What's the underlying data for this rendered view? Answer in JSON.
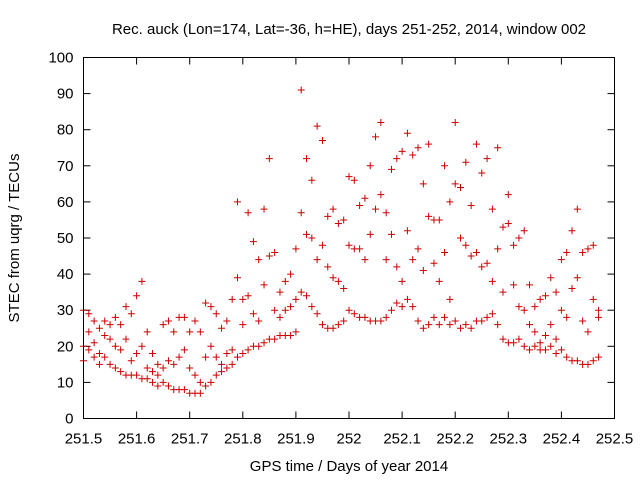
{
  "chart_data": {
    "type": "scatter",
    "title": "Rec. auck (Lon=174, Lat=-36, h=HE), days 251-252, 2014, window 002",
    "xlabel": "GPS time / Days of year 2014",
    "ylabel": "STEC from uqrg / TECUs",
    "xlim": [
      251.5,
      252.5
    ],
    "ylim": [
      0,
      100
    ],
    "xticks": [
      251.5,
      251.6,
      251.7,
      251.8,
      251.9,
      252.0,
      252.1,
      252.2,
      252.3,
      252.4,
      252.5
    ],
    "xtick_labels": [
      "251.5",
      "251.6",
      "251.7",
      "251.8",
      "251.9",
      "252",
      "252.1",
      "252.2",
      "252.3",
      "252.4",
      "252.5"
    ],
    "yticks": [
      0,
      10,
      20,
      30,
      40,
      50,
      60,
      70,
      80,
      90,
      100
    ],
    "ytick_labels": [
      "0",
      "10",
      "20",
      "30",
      "40",
      "50",
      "60",
      "70",
      "80",
      "90",
      "100"
    ],
    "grid": false,
    "marker": "+",
    "series_color": "#cc0000",
    "series": [
      {
        "name": "STEC",
        "points": [
          [
            251.5,
            30
          ],
          [
            251.5,
            20
          ],
          [
            251.5,
            16
          ],
          [
            251.51,
            29
          ],
          [
            251.51,
            24
          ],
          [
            251.51,
            19
          ],
          [
            251.52,
            27
          ],
          [
            251.52,
            21
          ],
          [
            251.52,
            17
          ],
          [
            251.53,
            25
          ],
          [
            251.53,
            18
          ],
          [
            251.53,
            15
          ],
          [
            251.54,
            27
          ],
          [
            251.54,
            23
          ],
          [
            251.54,
            17
          ],
          [
            251.55,
            26
          ],
          [
            251.55,
            22
          ],
          [
            251.55,
            15
          ],
          [
            251.56,
            28
          ],
          [
            251.56,
            20
          ],
          [
            251.56,
            14
          ],
          [
            251.57,
            26
          ],
          [
            251.57,
            19
          ],
          [
            251.57,
            13
          ],
          [
            251.58,
            31
          ],
          [
            251.58,
            22
          ],
          [
            251.58,
            12
          ],
          [
            251.59,
            29
          ],
          [
            251.59,
            16
          ],
          [
            251.59,
            12
          ],
          [
            251.6,
            34
          ],
          [
            251.6,
            18
          ],
          [
            251.6,
            12
          ],
          [
            251.61,
            38
          ],
          [
            251.61,
            20
          ],
          [
            251.61,
            11
          ],
          [
            251.62,
            24
          ],
          [
            251.62,
            14
          ],
          [
            251.62,
            11
          ],
          [
            251.63,
            18
          ],
          [
            251.63,
            13
          ],
          [
            251.63,
            10
          ],
          [
            251.64,
            15
          ],
          [
            251.64,
            12
          ],
          [
            251.64,
            9
          ],
          [
            251.65,
            26
          ],
          [
            251.65,
            14
          ],
          [
            251.65,
            10
          ],
          [
            251.66,
            27
          ],
          [
            251.66,
            16
          ],
          [
            251.66,
            9
          ],
          [
            251.67,
            24
          ],
          [
            251.67,
            15
          ],
          [
            251.67,
            8
          ],
          [
            251.68,
            28
          ],
          [
            251.68,
            17
          ],
          [
            251.68,
            8
          ],
          [
            251.69,
            28
          ],
          [
            251.69,
            19
          ],
          [
            251.69,
            8
          ],
          [
            251.7,
            24
          ],
          [
            251.7,
            14
          ],
          [
            251.7,
            7
          ],
          [
            251.71,
            27
          ],
          [
            251.71,
            12
          ],
          [
            251.71,
            7
          ],
          [
            251.72,
            24
          ],
          [
            251.72,
            10
          ],
          [
            251.72,
            7
          ],
          [
            251.73,
            32
          ],
          [
            251.73,
            17
          ],
          [
            251.73,
            9
          ],
          [
            251.74,
            31
          ],
          [
            251.74,
            20
          ],
          [
            251.74,
            10
          ],
          [
            251.75,
            29
          ],
          [
            251.75,
            17
          ],
          [
            251.75,
            12
          ],
          [
            251.76,
            25
          ],
          [
            251.76,
            15
          ],
          [
            251.76,
            13
          ],
          [
            251.77,
            27
          ],
          [
            251.77,
            18
          ],
          [
            251.77,
            14
          ],
          [
            251.78,
            33
          ],
          [
            251.78,
            19
          ],
          [
            251.78,
            15
          ],
          [
            251.79,
            60
          ],
          [
            251.79,
            39
          ],
          [
            251.79,
            17
          ],
          [
            251.8,
            33
          ],
          [
            251.8,
            26
          ],
          [
            251.8,
            18
          ],
          [
            251.81,
            57
          ],
          [
            251.81,
            34
          ],
          [
            251.81,
            19
          ],
          [
            251.82,
            49
          ],
          [
            251.82,
            29
          ],
          [
            251.82,
            20
          ],
          [
            251.83,
            44
          ],
          [
            251.83,
            27
          ],
          [
            251.83,
            20
          ],
          [
            251.84,
            58
          ],
          [
            251.84,
            37
          ],
          [
            251.84,
            21
          ],
          [
            251.85,
            72
          ],
          [
            251.85,
            45
          ],
          [
            251.85,
            22
          ],
          [
            251.86,
            46
          ],
          [
            251.86,
            30
          ],
          [
            251.86,
            22
          ],
          [
            251.87,
            35
          ],
          [
            251.87,
            28
          ],
          [
            251.87,
            23
          ],
          [
            251.88,
            38
          ],
          [
            251.88,
            30
          ],
          [
            251.88,
            23
          ],
          [
            251.89,
            40
          ],
          [
            251.89,
            31
          ],
          [
            251.89,
            23
          ],
          [
            251.9,
            47
          ],
          [
            251.9,
            33
          ],
          [
            251.9,
            24
          ],
          [
            251.91,
            91
          ],
          [
            251.91,
            57
          ],
          [
            251.91,
            35
          ],
          [
            251.92,
            72
          ],
          [
            251.92,
            51
          ],
          [
            251.92,
            34
          ],
          [
            251.93,
            66
          ],
          [
            251.93,
            50
          ],
          [
            251.93,
            31
          ],
          [
            251.94,
            81
          ],
          [
            251.94,
            44
          ],
          [
            251.94,
            29
          ],
          [
            251.95,
            77
          ],
          [
            251.95,
            48
          ],
          [
            251.95,
            26
          ],
          [
            251.96,
            56
          ],
          [
            251.96,
            42
          ],
          [
            251.96,
            25
          ],
          [
            251.97,
            58
          ],
          [
            251.97,
            39
          ],
          [
            251.97,
            25
          ],
          [
            251.98,
            54
          ],
          [
            251.98,
            38
          ],
          [
            251.98,
            26
          ],
          [
            251.99,
            55
          ],
          [
            251.99,
            36
          ],
          [
            251.99,
            27
          ],
          [
            252.0,
            67
          ],
          [
            252.0,
            48
          ],
          [
            252.0,
            30
          ],
          [
            252.01,
            66
          ],
          [
            252.01,
            47
          ],
          [
            252.01,
            29
          ],
          [
            252.02,
            59
          ],
          [
            252.02,
            47
          ],
          [
            252.02,
            28
          ],
          [
            252.03,
            61
          ],
          [
            252.03,
            44
          ],
          [
            252.03,
            28
          ],
          [
            252.04,
            70
          ],
          [
            252.04,
            51
          ],
          [
            252.04,
            27
          ],
          [
            252.05,
            78
          ],
          [
            252.05,
            58
          ],
          [
            252.05,
            27
          ],
          [
            252.06,
            82
          ],
          [
            252.06,
            62
          ],
          [
            252.06,
            27
          ],
          [
            252.07,
            57
          ],
          [
            252.07,
            44
          ],
          [
            252.07,
            28
          ],
          [
            252.08,
            69
          ],
          [
            252.08,
            51
          ],
          [
            252.08,
            30
          ],
          [
            252.09,
            72
          ],
          [
            252.09,
            42
          ],
          [
            252.09,
            32
          ],
          [
            252.1,
            74
          ],
          [
            252.1,
            38
          ],
          [
            252.1,
            31
          ],
          [
            252.11,
            79
          ],
          [
            252.11,
            52
          ],
          [
            252.11,
            33
          ],
          [
            252.12,
            73
          ],
          [
            252.12,
            44
          ],
          [
            252.12,
            31
          ],
          [
            252.13,
            75
          ],
          [
            252.13,
            47
          ],
          [
            252.13,
            27
          ],
          [
            252.14,
            65
          ],
          [
            252.14,
            41
          ],
          [
            252.14,
            25
          ],
          [
            252.15,
            76
          ],
          [
            252.15,
            56
          ],
          [
            252.15,
            26
          ],
          [
            252.16,
            55
          ],
          [
            252.16,
            43
          ],
          [
            252.16,
            28
          ],
          [
            252.17,
            55
          ],
          [
            252.17,
            38
          ],
          [
            252.17,
            26
          ],
          [
            252.18,
            70
          ],
          [
            252.18,
            46
          ],
          [
            252.18,
            28
          ],
          [
            252.19,
            60
          ],
          [
            252.19,
            33
          ],
          [
            252.19,
            26
          ],
          [
            252.2,
            82
          ],
          [
            252.2,
            65
          ],
          [
            252.2,
            27
          ],
          [
            252.21,
            64
          ],
          [
            252.21,
            50
          ],
          [
            252.21,
            25
          ],
          [
            252.22,
            71
          ],
          [
            252.22,
            48
          ],
          [
            252.22,
            26
          ],
          [
            252.23,
            59
          ],
          [
            252.23,
            45
          ],
          [
            252.23,
            25
          ],
          [
            252.24,
            76
          ],
          [
            252.24,
            46
          ],
          [
            252.24,
            27
          ],
          [
            252.25,
            68
          ],
          [
            252.25,
            42
          ],
          [
            252.25,
            27
          ],
          [
            252.26,
            72
          ],
          [
            252.26,
            43
          ],
          [
            252.26,
            28
          ],
          [
            252.27,
            58
          ],
          [
            252.27,
            38
          ],
          [
            252.27,
            29
          ],
          [
            252.28,
            75
          ],
          [
            252.28,
            47
          ],
          [
            252.28,
            26
          ],
          [
            252.29,
            53
          ],
          [
            252.29,
            35
          ],
          [
            252.29,
            22
          ],
          [
            252.3,
            62
          ],
          [
            252.3,
            54
          ],
          [
            252.3,
            21
          ],
          [
            252.31,
            48
          ],
          [
            252.31,
            37
          ],
          [
            252.31,
            21
          ],
          [
            252.32,
            50
          ],
          [
            252.32,
            31
          ],
          [
            252.32,
            22
          ],
          [
            252.33,
            52
          ],
          [
            252.33,
            30
          ],
          [
            252.33,
            20
          ],
          [
            252.34,
            37
          ],
          [
            252.34,
            26
          ],
          [
            252.34,
            19
          ],
          [
            252.35,
            31
          ],
          [
            252.35,
            24
          ],
          [
            252.35,
            20
          ],
          [
            252.36,
            33
          ],
          [
            252.36,
            21
          ],
          [
            252.36,
            19
          ],
          [
            252.37,
            34
          ],
          [
            252.37,
            23
          ],
          [
            252.37,
            19
          ],
          [
            252.38,
            39
          ],
          [
            252.38,
            26
          ],
          [
            252.38,
            20
          ],
          [
            252.39,
            35
          ],
          [
            252.39,
            22
          ],
          [
            252.39,
            18
          ],
          [
            252.4,
            44
          ],
          [
            252.4,
            30
          ],
          [
            252.4,
            19
          ],
          [
            252.41,
            46
          ],
          [
            252.41,
            28
          ],
          [
            252.41,
            17
          ],
          [
            252.42,
            52
          ],
          [
            252.42,
            36
          ],
          [
            252.42,
            16
          ],
          [
            252.43,
            58
          ],
          [
            252.43,
            39
          ],
          [
            252.43,
            16
          ],
          [
            252.44,
            46
          ],
          [
            252.44,
            27
          ],
          [
            252.44,
            15
          ],
          [
            252.45,
            47
          ],
          [
            252.45,
            24
          ],
          [
            252.45,
            15
          ],
          [
            252.46,
            48
          ],
          [
            252.46,
            33
          ],
          [
            252.46,
            16
          ],
          [
            252.47,
            30
          ],
          [
            252.47,
            28
          ],
          [
            252.47,
            17
          ]
        ]
      }
    ]
  }
}
